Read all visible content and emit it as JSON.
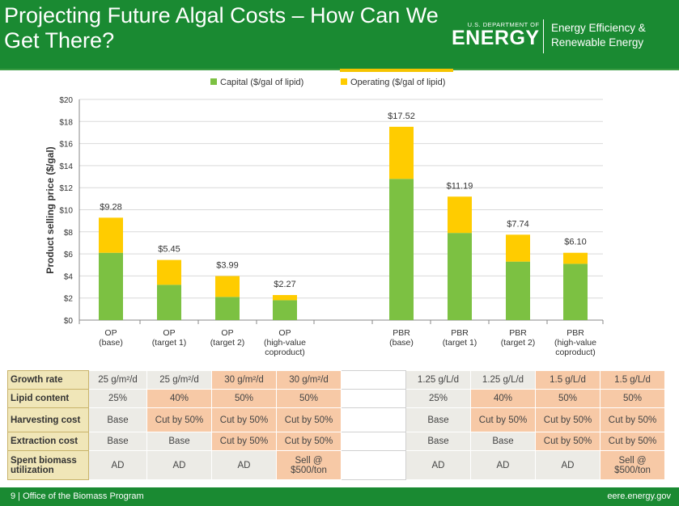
{
  "header": {
    "title": "Projecting Future Algal Costs – How Can We Get There?",
    "doe_small": "U.S. DEPARTMENT OF",
    "doe_big": "ENERGY",
    "eere_line1": "Energy Efficiency &",
    "eere_line2": "Renewable Energy"
  },
  "colors": {
    "capital": "#7cc142",
    "operating": "#ffcc00",
    "header": "#1a8a32"
  },
  "chart_data": {
    "type": "bar",
    "stacked": true,
    "ylabel": "Product selling price ($/gal)",
    "ylim": [
      0,
      20
    ],
    "yticks": [
      "$0",
      "$2",
      "$4",
      "$6",
      "$8",
      "$10",
      "$12",
      "$14",
      "$16",
      "$18",
      "$20"
    ],
    "categories": [
      [
        "OP",
        "(base)"
      ],
      [
        "OP",
        "(target 1)"
      ],
      [
        "OP",
        "(target 2)"
      ],
      [
        "OP",
        "(high-value",
        "coproduct)"
      ],
      [
        "PBR",
        "(base)"
      ],
      [
        "PBR",
        "(target 1)"
      ],
      [
        "PBR",
        "(target 2)"
      ],
      [
        "PBR",
        "(high-value",
        "coproduct)"
      ]
    ],
    "series": [
      {
        "name": "Capital ($/gal of lipid)",
        "values": [
          6.1,
          3.2,
          2.1,
          1.8,
          12.8,
          7.9,
          5.3,
          5.1
        ]
      },
      {
        "name": "Operating ($/gal of lipid)",
        "values": [
          3.18,
          2.25,
          1.89,
          0.47,
          4.72,
          3.29,
          2.44,
          1.0
        ]
      }
    ],
    "totals": [
      "$9.28",
      "$5.45",
      "$3.99",
      "$2.27",
      "$17.52",
      "$11.19",
      "$7.74",
      "$6.10"
    ],
    "legend_position": "top",
    "grid": true
  },
  "table": {
    "rows": [
      {
        "label": "Growth rate",
        "cells": [
          "25 g/m²/d",
          "25 g/m²/d",
          "30 g/m²/d",
          "30 g/m²/d",
          "1.25 g/L/d",
          "1.25 g/L/d",
          "1.5 g/L/d",
          "1.5 g/L/d"
        ]
      },
      {
        "label": "Lipid content",
        "cells": [
          "25%",
          "40%",
          "50%",
          "50%",
          "25%",
          "40%",
          "50%",
          "50%"
        ]
      },
      {
        "label": "Harvesting cost",
        "cells": [
          "Base",
          "Cut by 50%",
          "Cut by 50%",
          "Cut by 50%",
          "Base",
          "Cut by 50%",
          "Cut by 50%",
          "Cut by 50%"
        ]
      },
      {
        "label": "Extraction cost",
        "cells": [
          "Base",
          "Base",
          "Cut by 50%",
          "Cut by 50%",
          "Base",
          "Base",
          "Cut by 50%",
          "Cut by 50%"
        ]
      },
      {
        "label": "Spent biomass utilization",
        "cells": [
          "AD",
          "AD",
          "AD",
          "Sell @ $500/ton",
          "AD",
          "AD",
          "AD",
          "Sell @ $500/ton"
        ]
      }
    ],
    "highlight": [
      [
        false,
        false,
        true,
        true,
        false,
        false,
        true,
        true
      ],
      [
        false,
        true,
        true,
        true,
        false,
        true,
        true,
        true
      ],
      [
        false,
        true,
        true,
        true,
        false,
        true,
        true,
        true
      ],
      [
        false,
        false,
        true,
        true,
        false,
        false,
        true,
        true
      ],
      [
        false,
        false,
        false,
        true,
        false,
        false,
        false,
        true
      ]
    ]
  },
  "footer": {
    "left": "9 | Office of the Biomass Program",
    "right": "eere.energy.gov"
  }
}
